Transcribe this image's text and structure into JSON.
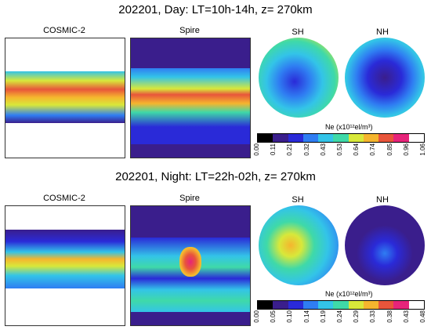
{
  "day": {
    "title": "202201, Day: LT=10h-14h, z= 270km",
    "cosmic_label": "COSMIC-2",
    "spire_label": "Spire",
    "sh_label": "SH",
    "nh_label": "NH",
    "colorbar_title": "Ne (x10¹²el/m³)",
    "ticks": [
      "0.00",
      "0.11",
      "0.21",
      "0.32",
      "0.43",
      "0.53",
      "0.64",
      "0.74",
      "0.85",
      "0.96",
      "1.06"
    ]
  },
  "night": {
    "title": "202201, Night: LT=22h-02h, z= 270km",
    "cosmic_label": "COSMIC-2",
    "spire_label": "Spire",
    "sh_label": "SH",
    "nh_label": "NH",
    "colorbar_title": "Ne (x10¹²el/m³)",
    "ticks": [
      "0.00",
      "0.05",
      "0.10",
      "0.14",
      "0.19",
      "0.24",
      "0.29",
      "0.33",
      "0.38",
      "0.43",
      "0.48"
    ]
  },
  "colors": [
    "#000000",
    "#3a1e8c",
    "#2a2ad8",
    "#2f7df2",
    "#33c4e8",
    "#3fd9a8",
    "#d8e83a",
    "#f5b52e",
    "#e8553b",
    "#e6247a",
    "#ffffff"
  ],
  "chart_data": [
    {
      "type": "heatmap",
      "title": "202201, Day: LT=10h-14h, z= 270km",
      "panels": [
        "COSMIC-2",
        "Spire",
        "SH",
        "NH"
      ],
      "colorbar_label": "Ne (x10¹²el/m³)",
      "colorbar_range": [
        0.0,
        1.06
      ]
    },
    {
      "type": "heatmap",
      "title": "202201, Night: LT=22h-02h, z= 270km",
      "panels": [
        "COSMIC-2",
        "Spire",
        "SH",
        "NH"
      ],
      "colorbar_label": "Ne (x10¹²el/m³)",
      "colorbar_range": [
        0.0,
        0.48
      ]
    }
  ]
}
